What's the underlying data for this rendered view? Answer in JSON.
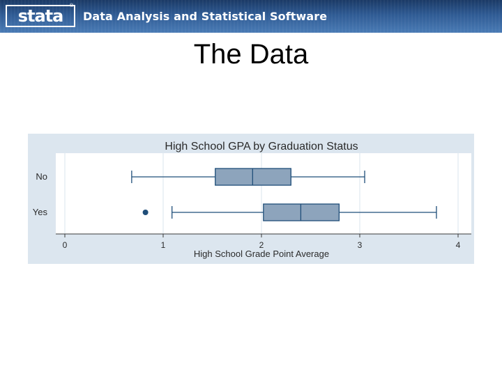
{
  "header": {
    "logo_text": "stata",
    "logo_reg": "®",
    "tagline": "Data Analysis and Statistical Software"
  },
  "slide": {
    "title": "The Data"
  },
  "colors": {
    "banner": "#2f5b94",
    "plot_background": "#dce6ef",
    "box_fill": "#8da4bc",
    "box_stroke": "#1f4e79"
  },
  "chart_data": {
    "type": "boxplot",
    "orientation": "horizontal",
    "title": "High School GPA by Graduation Status",
    "xlabel": "High School Grade Point Average",
    "ylabel": "",
    "xlim": [
      -0.1,
      4.1
    ],
    "xticks": [
      0,
      1,
      2,
      3,
      4
    ],
    "grid": true,
    "categories": [
      "No",
      "Yes"
    ],
    "boxes": [
      {
        "category": "No",
        "whisker_low": 0.68,
        "q1": 1.53,
        "median": 1.91,
        "q3": 2.3,
        "whisker_high": 3.05,
        "outliers": []
      },
      {
        "category": "Yes",
        "whisker_low": 1.09,
        "q1": 2.02,
        "median": 2.4,
        "q3": 2.79,
        "whisker_high": 3.78,
        "outliers": [
          0.82
        ]
      }
    ]
  }
}
